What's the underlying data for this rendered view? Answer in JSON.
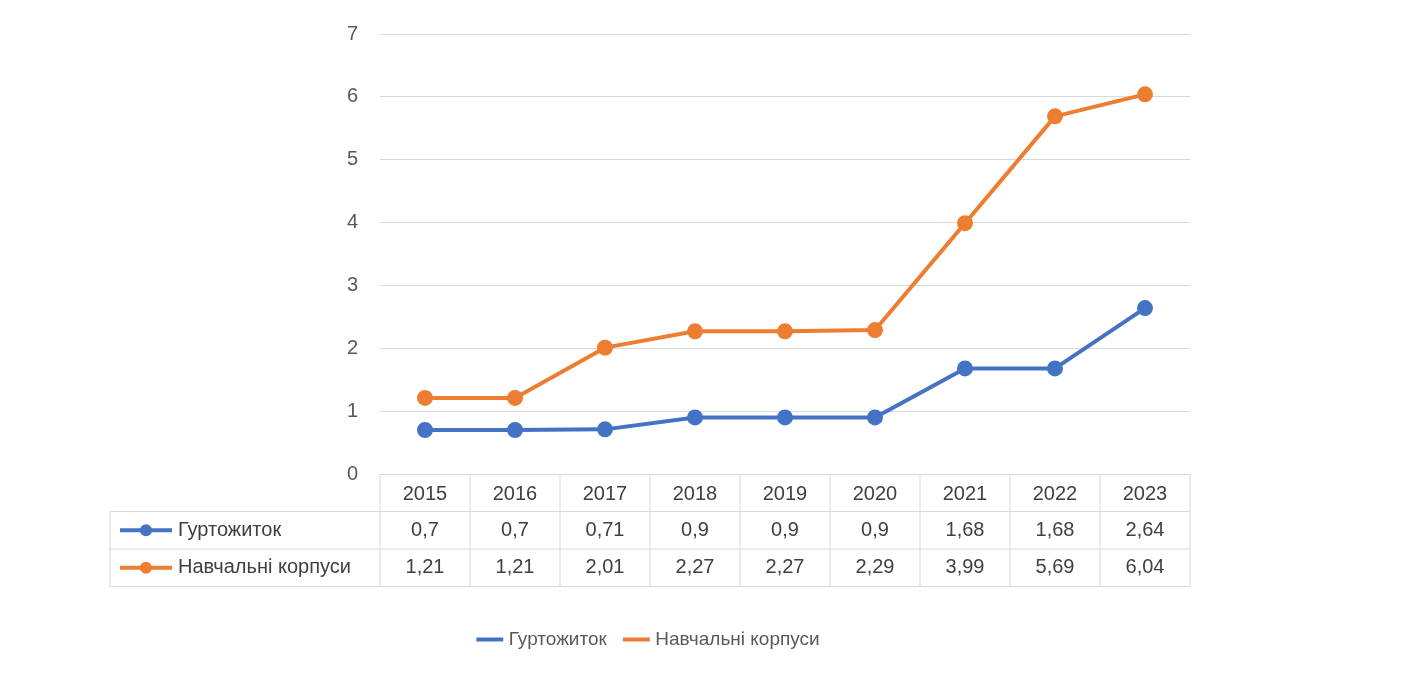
{
  "chart_data": {
    "type": "line",
    "categories": [
      "2015",
      "2016",
      "2017",
      "2018",
      "2019",
      "2020",
      "2021",
      "2022",
      "2023"
    ],
    "series": [
      {
        "name": "Гуртожиток",
        "color": "#4472c4",
        "values": [
          0.7,
          0.7,
          0.71,
          0.9,
          0.9,
          0.9,
          1.68,
          1.68,
          2.64
        ],
        "value_labels": [
          "0,7",
          "0,7",
          "0,71",
          "0,9",
          "0,9",
          "0,9",
          "1,68",
          "1,68",
          "2,64"
        ]
      },
      {
        "name": "Навчальні корпуси",
        "color": "#ed7d31",
        "values": [
          1.21,
          1.21,
          2.01,
          2.27,
          2.27,
          2.29,
          3.99,
          5.69,
          6.04
        ],
        "value_labels": [
          "1,21",
          "1,21",
          "2,01",
          "2,27",
          "2,27",
          "2,29",
          "3,99",
          "5,69",
          "6,04"
        ]
      }
    ],
    "ylim": [
      0,
      7
    ],
    "yticks": [
      0,
      1,
      2,
      3,
      4,
      5,
      6,
      7
    ],
    "grid": "y",
    "legend": "bottom",
    "marker": "circle",
    "line_style": "solid"
  }
}
